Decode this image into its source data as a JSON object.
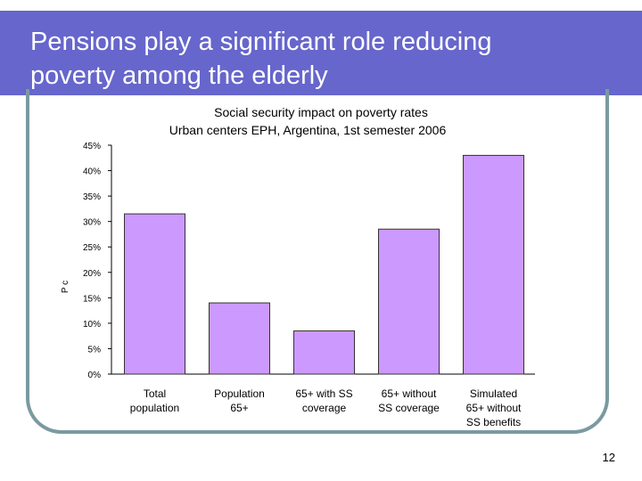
{
  "slide": {
    "title_line1": "Pensions play a significant role reducing",
    "title_line2": "poverty among the elderly",
    "page_number": "12"
  },
  "colors": {
    "title_bar": "#6666cc",
    "bar_fill": "#cc99ff",
    "bar_stroke": "#333333",
    "frame": "#7a9aa0"
  },
  "chart_data": {
    "type": "bar",
    "title": "Social security impact on poverty rates",
    "subtitle": "Urban centers EPH, Argentina, 1st semester 2006",
    "ylabel": "P c",
    "ylim": [
      0,
      0.45
    ],
    "yticks": [
      0,
      0.05,
      0.1,
      0.15,
      0.2,
      0.25,
      0.3,
      0.35,
      0.4,
      0.45
    ],
    "ytick_labels": [
      "0%",
      "5%",
      "10%",
      "15%",
      "20%",
      "25%",
      "30%",
      "35%",
      "40%",
      "45%"
    ],
    "categories": [
      [
        "Total",
        "population"
      ],
      [
        "Population",
        "65+"
      ],
      [
        "65+  with SS",
        "coverage"
      ],
      [
        "65+  without",
        "SS coverage"
      ],
      [
        "Simulated",
        "65+  without",
        "SS benefits"
      ]
    ],
    "values": [
      0.315,
      0.14,
      0.085,
      0.285,
      0.43
    ],
    "grid": false,
    "legend": "none"
  }
}
